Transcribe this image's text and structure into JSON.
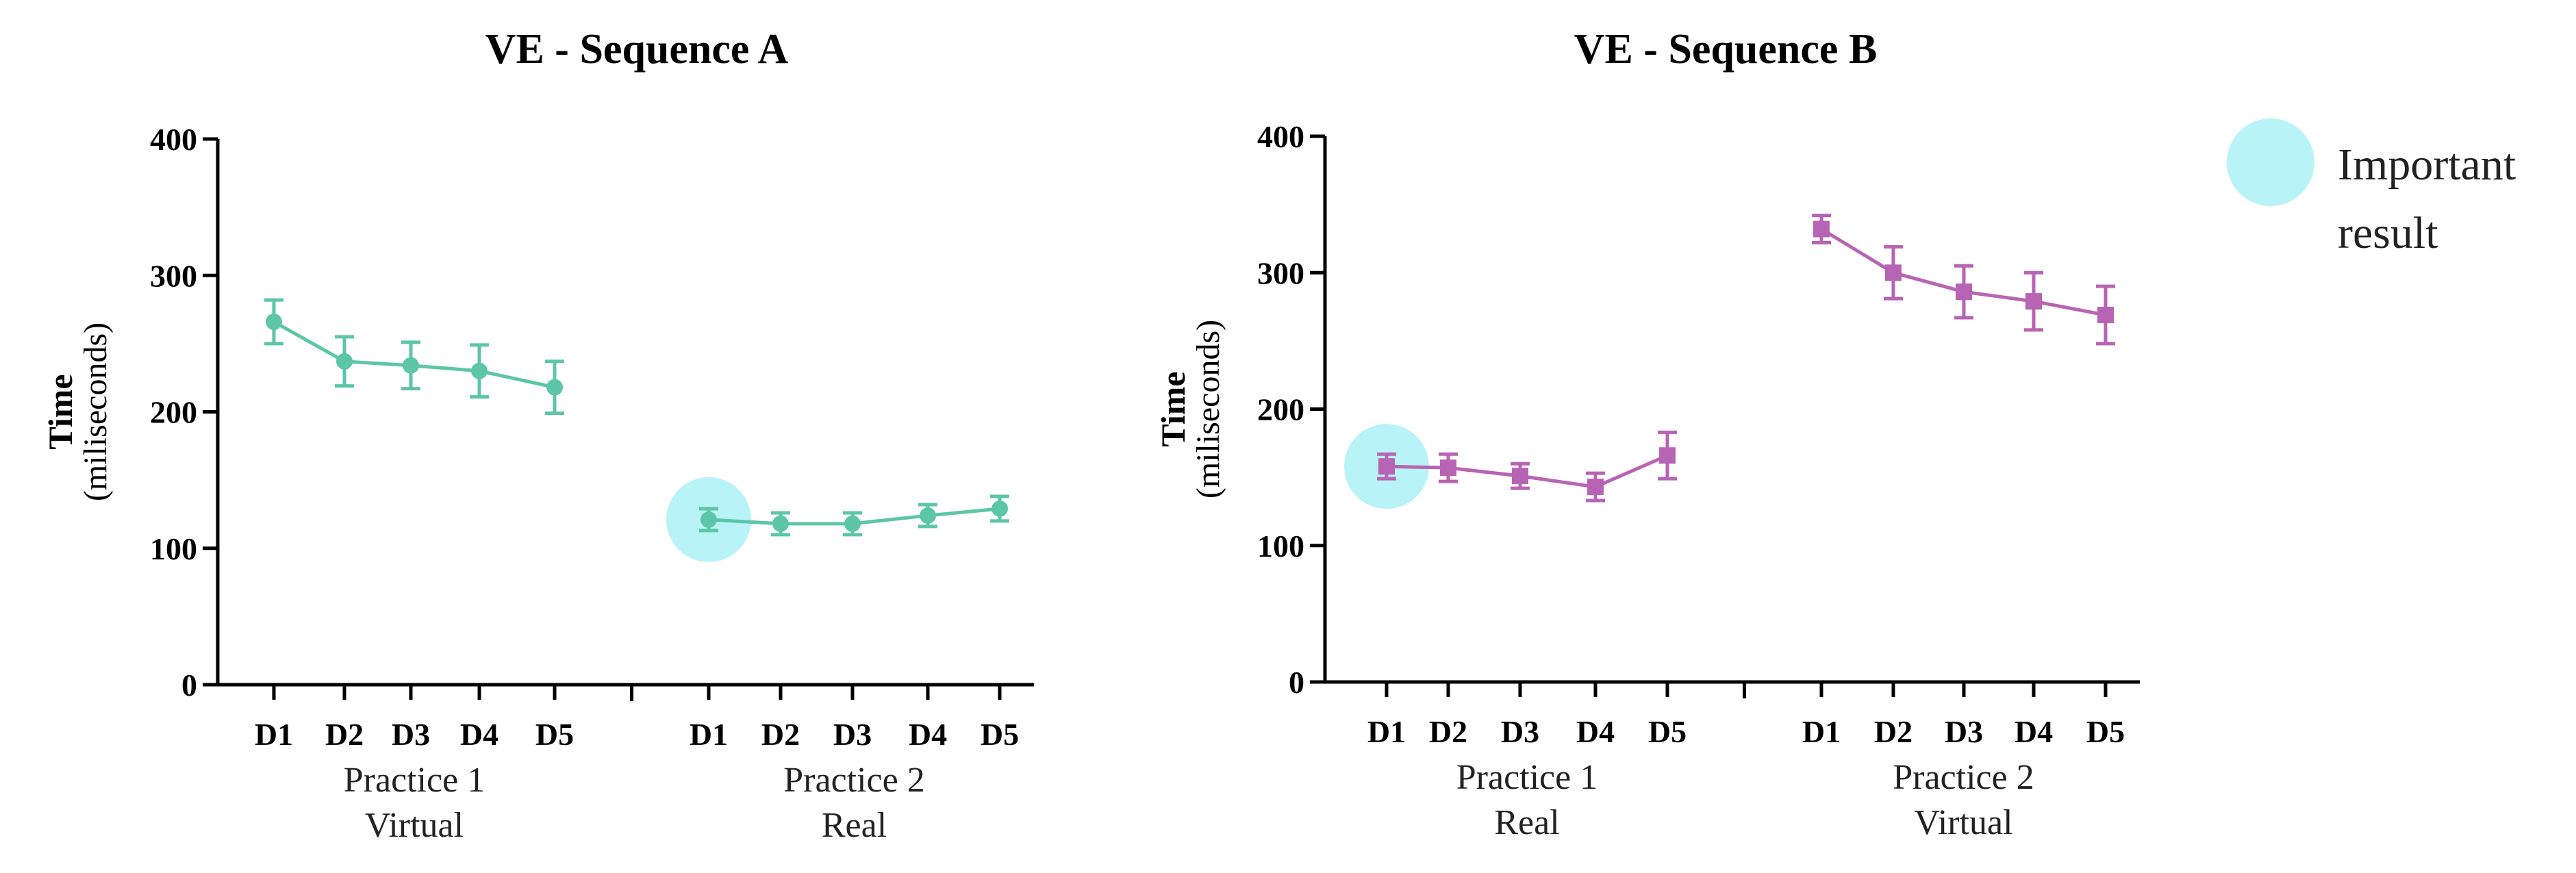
{
  "chart_data": [
    {
      "type": "line",
      "title": "VE - Sequence A",
      "ylabel": "Time",
      "ylabel_sub": "(miliseconds)",
      "ylim": [
        0,
        400
      ],
      "yticks": [
        0,
        100,
        200,
        300,
        400
      ],
      "color": "#5cc6a7",
      "marker": "circle",
      "groups": [
        {
          "label_line1": "Practice 1",
          "label_line2": "Virtual",
          "categories": [
            "D1",
            "D2",
            "D3",
            "D4",
            "D5"
          ],
          "values": [
            266,
            237,
            234,
            230,
            218
          ],
          "errors": [
            16,
            18,
            17,
            19,
            19
          ]
        },
        {
          "label_line1": "Practice 2",
          "label_line2": "Real",
          "categories": [
            "D1",
            "D2",
            "D3",
            "D4",
            "D5"
          ],
          "values": [
            121,
            118,
            118,
            124,
            129
          ],
          "errors": [
            8,
            8,
            8,
            8,
            9
          ]
        }
      ],
      "highlight": {
        "group": 1,
        "index": 0
      }
    },
    {
      "type": "line",
      "title": "VE - Sequence B",
      "ylabel": "Time",
      "ylabel_sub": "(miliseconds)",
      "ylim": [
        0,
        400
      ],
      "yticks": [
        0,
        100,
        200,
        300,
        400
      ],
      "color": "#b864b4",
      "marker": "square",
      "groups": [
        {
          "label_line1": "Practice 1",
          "label_line2": "Real",
          "categories": [
            "D1",
            "D2",
            "D3",
            "D4",
            "D5"
          ],
          "values": [
            158,
            157,
            151,
            143,
            166
          ],
          "errors": [
            9,
            10,
            9,
            10,
            17
          ]
        },
        {
          "label_line1": "Practice 2",
          "label_line2": "Virtual",
          "categories": [
            "D1",
            "D2",
            "D3",
            "D4",
            "D5"
          ],
          "values": [
            332,
            300,
            286,
            279,
            269
          ],
          "errors": [
            10,
            19,
            19,
            21,
            21
          ]
        }
      ],
      "highlight": {
        "group": 0,
        "index": 0
      }
    }
  ],
  "legend": {
    "line1": "Important",
    "line2": "result",
    "color": "#b8f3f7"
  }
}
